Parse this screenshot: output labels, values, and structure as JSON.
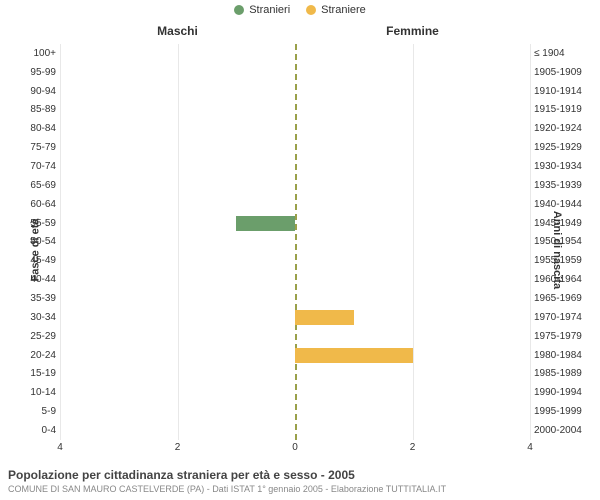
{
  "legend": {
    "series": [
      {
        "label": "Stranieri",
        "color": "#6b9e6b"
      },
      {
        "label": "Straniere",
        "color": "#f0b94a"
      }
    ]
  },
  "column_headers": {
    "male": "Maschi",
    "female": "Femmine"
  },
  "yaxis": {
    "left_title": "Fasce di età",
    "right_title": "Anni di nascita"
  },
  "chart": {
    "type": "population-pyramid",
    "xlim": 4,
    "xtick_step": 2,
    "xticks_left": [
      4,
      2,
      0
    ],
    "xticks_right": [
      0,
      2,
      4
    ],
    "background_color": "#ffffff",
    "grid_color": "#e8e8e8",
    "center_line_color": "#9aa04a",
    "bar_colors": {
      "male": "#6b9e6b",
      "female": "#f0b94a"
    },
    "row_height_pct": 4.76,
    "label_fontsize": 10,
    "rows": [
      {
        "age": "100+",
        "birth": "≤ 1904",
        "male": 0,
        "female": 0
      },
      {
        "age": "95-99",
        "birth": "1905-1909",
        "male": 0,
        "female": 0
      },
      {
        "age": "90-94",
        "birth": "1910-1914",
        "male": 0,
        "female": 0
      },
      {
        "age": "85-89",
        "birth": "1915-1919",
        "male": 0,
        "female": 0
      },
      {
        "age": "80-84",
        "birth": "1920-1924",
        "male": 0,
        "female": 0
      },
      {
        "age": "75-79",
        "birth": "1925-1929",
        "male": 0,
        "female": 0
      },
      {
        "age": "70-74",
        "birth": "1930-1934",
        "male": 0,
        "female": 0
      },
      {
        "age": "65-69",
        "birth": "1935-1939",
        "male": 0,
        "female": 0
      },
      {
        "age": "60-64",
        "birth": "1940-1944",
        "male": 0,
        "female": 0
      },
      {
        "age": "55-59",
        "birth": "1945-1949",
        "male": 1,
        "female": 0
      },
      {
        "age": "50-54",
        "birth": "1950-1954",
        "male": 0,
        "female": 0
      },
      {
        "age": "45-49",
        "birth": "1955-1959",
        "male": 0,
        "female": 0
      },
      {
        "age": "40-44",
        "birth": "1960-1964",
        "male": 0,
        "female": 0
      },
      {
        "age": "35-39",
        "birth": "1965-1969",
        "male": 0,
        "female": 0
      },
      {
        "age": "30-34",
        "birth": "1970-1974",
        "male": 0,
        "female": 1
      },
      {
        "age": "25-29",
        "birth": "1975-1979",
        "male": 0,
        "female": 0
      },
      {
        "age": "20-24",
        "birth": "1980-1984",
        "male": 0,
        "female": 2
      },
      {
        "age": "15-19",
        "birth": "1985-1989",
        "male": 0,
        "female": 0
      },
      {
        "age": "10-14",
        "birth": "1990-1994",
        "male": 0,
        "female": 0
      },
      {
        "age": "5-9",
        "birth": "1995-1999",
        "male": 0,
        "female": 0
      },
      {
        "age": "0-4",
        "birth": "2000-2004",
        "male": 0,
        "female": 0
      }
    ]
  },
  "caption": {
    "main": "Popolazione per cittadinanza straniera per età e sesso - 2005",
    "sub": "COMUNE DI SAN MAURO CASTELVERDE (PA) - Dati ISTAT 1° gennaio 2005 - Elaborazione TUTTITALIA.IT"
  }
}
